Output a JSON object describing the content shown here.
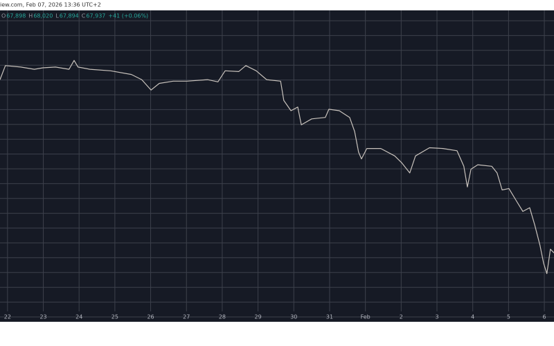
{
  "header": {
    "source": "iew.com, Feb 07, 2026 13:36 UTC+2",
    "ohlc": [
      {
        "label": "O",
        "value": "67,898"
      },
      {
        "label": "H",
        "value": "68,020"
      },
      {
        "label": "L",
        "value": "67,894"
      },
      {
        "label": "C",
        "value": "67,937"
      }
    ],
    "change": "+41 (+0.06%)"
  },
  "chart_data": {
    "type": "line",
    "color": "#c9c3bd",
    "grid": true,
    "x": [
      -0.21,
      -0.06,
      0.37,
      0.75,
      0.99,
      1.34,
      1.72,
      1.86,
      1.97,
      2.3,
      2.88,
      3.46,
      3.75,
      4.01,
      4.24,
      4.63,
      5.01,
      5.59,
      5.88,
      6.08,
      6.46,
      6.66,
      6.95,
      7.24,
      7.63,
      7.72,
      7.92,
      8.11,
      8.21,
      8.5,
      8.88,
      8.98,
      9.27,
      9.56,
      9.7,
      9.81,
      9.89,
      10.04,
      10.43,
      10.82,
      11.01,
      11.24,
      11.4,
      11.79,
      12.17,
      12.56,
      12.75,
      12.85,
      12.95,
      13.14,
      13.53,
      13.68,
      13.82,
      14.01,
      14.21,
      14.4,
      14.59,
      14.73,
      14.88,
      14.98,
      15.07,
      15.17,
      15.27
    ],
    "values": [
      91300,
      93200,
      93000,
      92700,
      92900,
      93000,
      92700,
      93900,
      93000,
      92700,
      92500,
      92000,
      91300,
      89900,
      90800,
      91100,
      91100,
      91300,
      91000,
      92500,
      92400,
      93200,
      92500,
      91300,
      91100,
      88500,
      87100,
      87600,
      85200,
      86000,
      86200,
      87300,
      87100,
      86200,
      84300,
      81500,
      80600,
      82000,
      82000,
      81000,
      80100,
      78700,
      81000,
      82100,
      82000,
      81700,
      79600,
      76800,
      79200,
      79800,
      79600,
      78700,
      76400,
      76600,
      75000,
      73500,
      74000,
      71700,
      68900,
      66500,
      65100,
      68400,
      67900
    ],
    "xlim": [
      -0.21,
      15.27
    ],
    "ylim": [
      58870,
      100660
    ],
    "xticks": [
      {
        "value": 0,
        "label": "22"
      },
      {
        "value": 1,
        "label": "23"
      },
      {
        "value": 2,
        "label": "24"
      },
      {
        "value": 3,
        "label": "25"
      },
      {
        "value": 4,
        "label": "26"
      },
      {
        "value": 5,
        "label": "27"
      },
      {
        "value": 6,
        "label": "28"
      },
      {
        "value": 7,
        "label": "29"
      },
      {
        "value": 8,
        "label": "30"
      },
      {
        "value": 9,
        "label": "31"
      },
      {
        "value": 10,
        "label": "Feb"
      },
      {
        "value": 11,
        "label": "2"
      },
      {
        "value": 12,
        "label": "3"
      },
      {
        "value": 13,
        "label": "4"
      },
      {
        "value": 14,
        "label": "5"
      },
      {
        "value": 15,
        "label": "6"
      }
    ]
  }
}
